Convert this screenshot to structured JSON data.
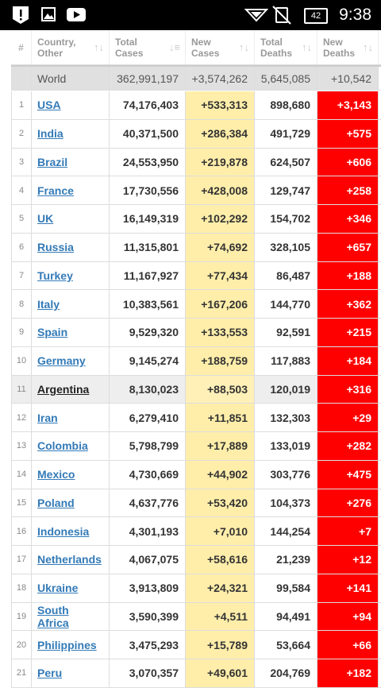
{
  "status_bar": {
    "battery": "42",
    "time": "9:38"
  },
  "table": {
    "headers": [
      [
        "#"
      ],
      [
        "Country,",
        "Other"
      ],
      [
        "Total",
        "Cases"
      ],
      [
        "New",
        "Cases"
      ],
      [
        "Total",
        "Deaths"
      ],
      [
        "New",
        "Deaths"
      ]
    ],
    "world": [
      "World",
      "362,991,197",
      "+3,574,262",
      "5,645,085",
      "+10,542"
    ],
    "rows": [
      [
        "1",
        "USA",
        "74,176,403",
        "+533,313",
        "898,680",
        "+3,143"
      ],
      [
        "2",
        "India",
        "40,371,500",
        "+286,384",
        "491,729",
        "+575"
      ],
      [
        "3",
        "Brazil",
        "24,553,950",
        "+219,878",
        "624,507",
        "+606"
      ],
      [
        "4",
        "France",
        "17,730,556",
        "+428,008",
        "129,747",
        "+258"
      ],
      [
        "5",
        "UK",
        "16,149,319",
        "+102,292",
        "154,702",
        "+346"
      ],
      [
        "6",
        "Russia",
        "11,315,801",
        "+74,692",
        "328,105",
        "+657"
      ],
      [
        "7",
        "Turkey",
        "11,167,927",
        "+77,434",
        "86,487",
        "+188"
      ],
      [
        "8",
        "Italy",
        "10,383,561",
        "+167,206",
        "144,770",
        "+362"
      ],
      [
        "9",
        "Spain",
        "9,529,320",
        "+133,553",
        "92,591",
        "+215"
      ],
      [
        "10",
        "Germany",
        "9,145,274",
        "+188,759",
        "117,883",
        "+184"
      ],
      [
        "11",
        "Argentina",
        "8,130,023",
        "+88,503",
        "120,019",
        "+316"
      ],
      [
        "12",
        "Iran",
        "6,279,410",
        "+11,851",
        "132,303",
        "+29"
      ],
      [
        "13",
        "Colombia",
        "5,798,799",
        "+17,889",
        "133,019",
        "+282"
      ],
      [
        "14",
        "Mexico",
        "4,730,669",
        "+44,902",
        "303,776",
        "+475"
      ],
      [
        "15",
        "Poland",
        "4,637,776",
        "+53,420",
        "104,373",
        "+276"
      ],
      [
        "16",
        "Indonesia",
        "4,301,193",
        "+7,010",
        "144,254",
        "+7"
      ],
      [
        "17",
        "Netherlands",
        "4,067,075",
        "+58,616",
        "21,239",
        "+12"
      ],
      [
        "18",
        "Ukraine",
        "3,913,809",
        "+24,321",
        "99,584",
        "+141"
      ],
      [
        "19",
        "South Africa",
        "3,590,399",
        "+4,511",
        "94,491",
        "+94"
      ],
      [
        "20",
        "Philippines",
        "3,475,293",
        "+15,789",
        "53,664",
        "+66"
      ],
      [
        "21",
        "Peru",
        "3,070,357",
        "+49,601",
        "204,769",
        "+182"
      ]
    ]
  }
}
